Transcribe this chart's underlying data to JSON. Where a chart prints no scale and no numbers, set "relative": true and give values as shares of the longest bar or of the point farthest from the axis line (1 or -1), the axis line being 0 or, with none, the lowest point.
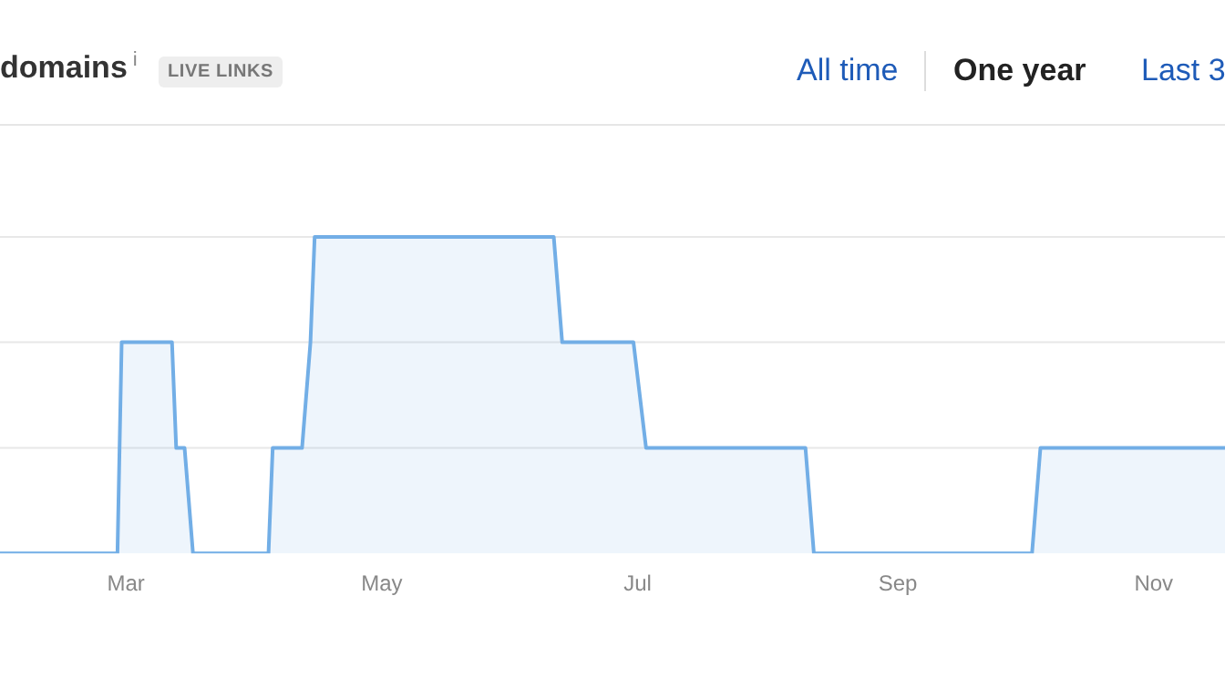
{
  "chart_data": {
    "type": "area",
    "title": "domains$^{i}$",
    "ref_lines": [
      {
        "axis": "y",
        "value": 0.333,
        "color": "#e8e8e8"
      },
      {
        "axis": "y",
        "value": 0.667,
        "color": "#e8e8e8"
      },
      {
        "axis": "y",
        "value": 1,
        "color": "#e8e8e8"
      }
    ],
    "annotations": [
      "LIVE LINKS",
      "All time",
      "One year",
      "Last 3"
    ],
    "relative": true,
    "legend": false,
    "marker": "none",
    "line_style": "solid",
    "xlim": [
      "--01-30",
      "--11-18"
    ],
    "xticks": [
      {
        "value": "--03-01",
        "label": "Mar"
      },
      {
        "value": "--05-01",
        "label": "May"
      },
      {
        "value": "--07-01",
        "label": "Jul"
      },
      {
        "value": "--09-01",
        "label": "Sep"
      },
      {
        "value": "--11-01",
        "label": "Nov"
      }
    ],
    "series": [
      {
        "color": "#72aee6",
        "x": [
          "--01-30",
          "--02-27",
          "--02-28",
          "--03-12",
          "--03-13",
          "--03-15",
          "--03-17",
          "--04-04",
          "--04-05",
          "--04-12",
          "--04-14",
          "--04-15",
          "--06-11",
          "--06-13",
          "--06-30",
          "--07-03",
          "--08-10",
          "--08-12",
          "--10-03",
          "--10-05",
          "--11-18"
        ],
        "values": [
          0,
          0,
          0.667,
          0.667,
          0.333,
          0.333,
          0,
          0,
          0.333,
          0.333,
          0.667,
          1,
          1,
          0.667,
          0.667,
          0.333,
          0.333,
          0,
          0,
          0.333,
          0.333
        ]
      }
    ]
  }
}
